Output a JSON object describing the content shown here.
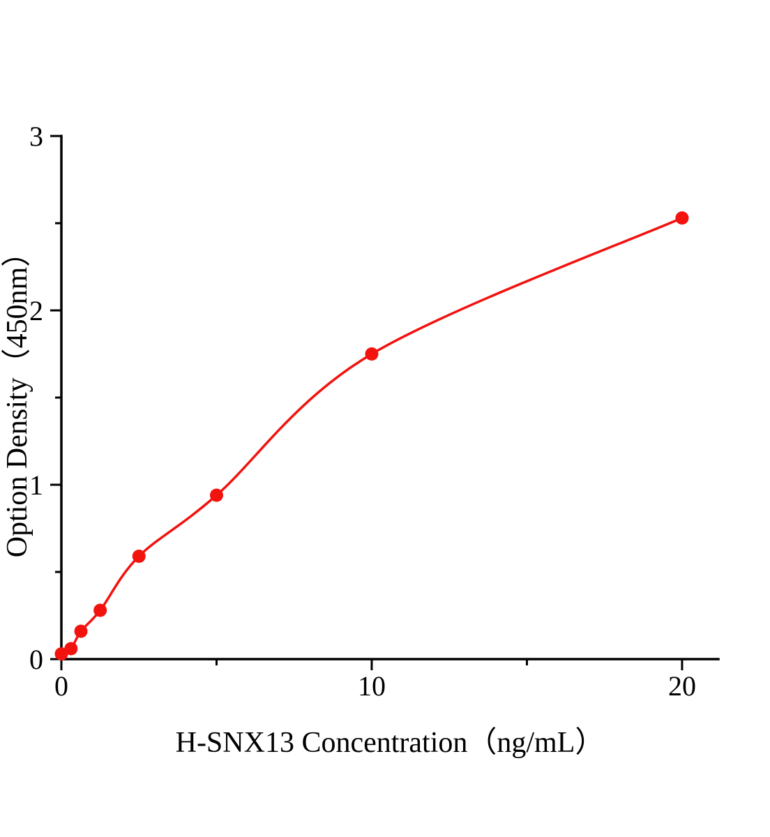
{
  "page": {
    "background": "#ffffff"
  },
  "chart_data": {
    "type": "scatter",
    "title": "",
    "xlabel": "H-SNX13 Concentration（ng/mL）",
    "ylabel": "Option Density（450nm）",
    "x": [
      0,
      0.31,
      0.63,
      1.25,
      2.5,
      5,
      10,
      20
    ],
    "y": [
      0.03,
      0.06,
      0.16,
      0.28,
      0.59,
      0.94,
      1.75,
      2.53
    ],
    "curve": "smooth",
    "xlim": [
      0,
      21.17
    ],
    "ylim": [
      0,
      3
    ],
    "x_major_ticks": [
      0,
      10,
      20
    ],
    "x_minor_ticks": [
      5,
      15
    ],
    "y_major_ticks": [
      0,
      1,
      2,
      3
    ],
    "y_minor_ticks": [
      0.5,
      1.5,
      2.5
    ],
    "line_color": "#f2120e",
    "marker_color": "#f2120e",
    "axis_color": "#000000",
    "grid": false,
    "legend": "none"
  }
}
